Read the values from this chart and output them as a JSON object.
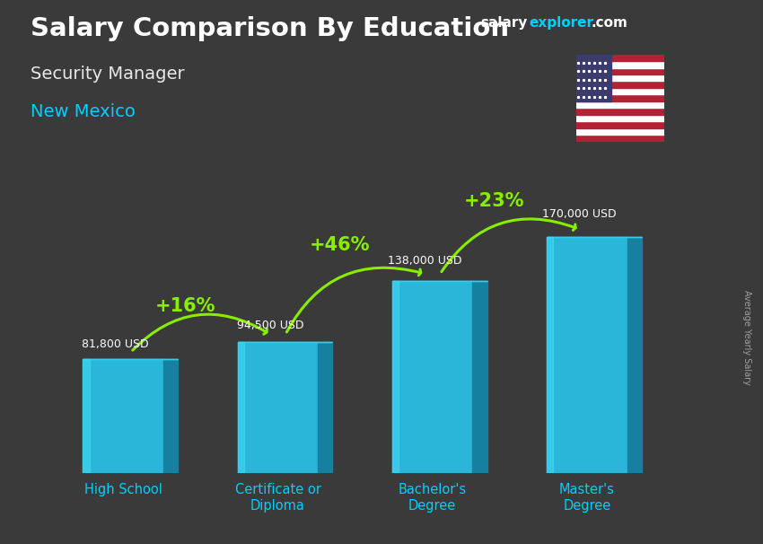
{
  "title_main": "Salary Comparison By Education",
  "subtitle1": "Security Manager",
  "subtitle2": "New Mexico",
  "ylabel_rotated": "Average Yearly Salary",
  "categories": [
    "High School",
    "Certificate or\nDiploma",
    "Bachelor's\nDegree",
    "Master's\nDegree"
  ],
  "values": [
    81800,
    94500,
    138000,
    170000
  ],
  "value_labels": [
    "81,800 USD",
    "94,500 USD",
    "138,000 USD",
    "170,000 USD"
  ],
  "pct_labels": [
    "+16%",
    "+46%",
    "+23%"
  ],
  "bar_color_main": "#29b6d8",
  "bar_color_left": "#1fa8cc",
  "bar_color_right": "#1580a0",
  "bar_color_top": "#35cce8",
  "bg_color": "#3a3a3a",
  "title_color": "#ffffff",
  "subtitle1_color": "#e8e8e8",
  "subtitle2_color": "#00cfff",
  "value_label_color": "#ffffff",
  "pct_color": "#88ee00",
  "arrow_color": "#88ee00",
  "site_salary_color": "#ffffff",
  "site_explorer_color": "#00cfff",
  "ylabel_color": "#aaaaaa",
  "xlabel_tick_color": "#00cfff",
  "ylim": [
    0,
    215000
  ],
  "bar_width": 0.52
}
